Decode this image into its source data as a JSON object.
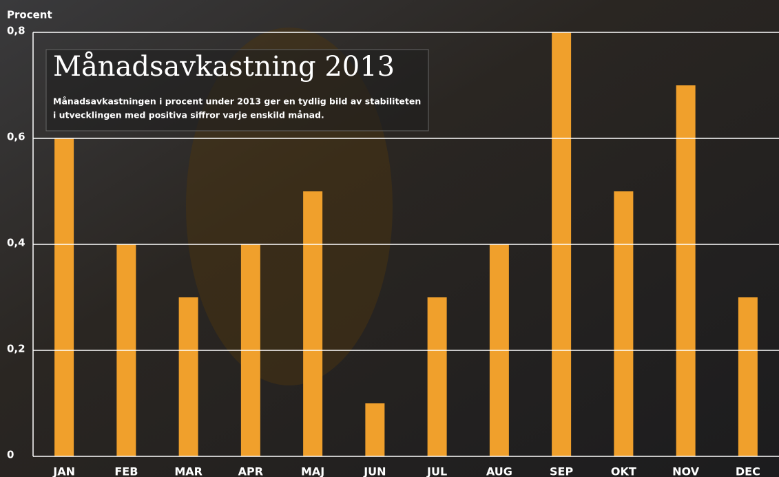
{
  "chart_data": {
    "type": "bar",
    "title": "Månadsavkastning 2013",
    "subtitle": [
      "Månadsavkastningen i procent under 2013 ger en tydlig bild av stabiliteten",
      "i utvecklingen med positiva siffror varje enskild månad."
    ],
    "y_axis_label": "Procent",
    "categories": [
      "JAN",
      "FEB",
      "MAR",
      "APR",
      "MAJ",
      "JUN",
      "JUL",
      "AUG",
      "SEP",
      "OKT",
      "NOV",
      "DEC"
    ],
    "values": [
      0.6,
      0.4,
      0.3,
      0.4,
      0.5,
      0.1,
      0.3,
      0.4,
      0.8,
      0.5,
      0.7,
      0.3
    ],
    "color": "#f0a02c",
    "ylim": [
      0,
      0.8
    ],
    "yticks": [
      0,
      {
        "value": 0.2,
        "label": "0,2"
      },
      {
        "value": 0.4,
        "label": "0,4"
      },
      {
        "value": 0.6,
        "label": "0,6"
      },
      {
        "value": 0.8,
        "label": "0,8"
      }
    ],
    "grid": true
  }
}
